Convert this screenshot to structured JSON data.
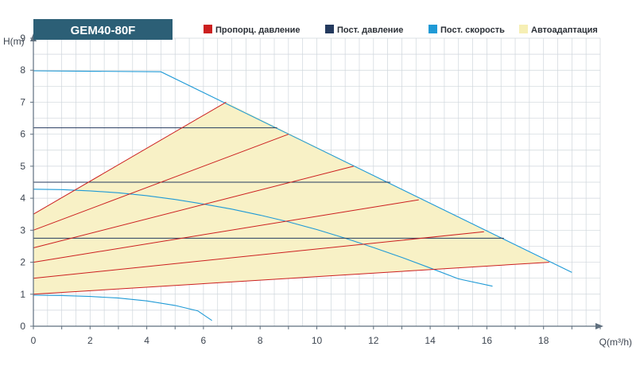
{
  "chart_data": {
    "type": "line",
    "title": "GEM40-80F",
    "xlabel": "Q(m³/h)",
    "ylabel": "H(m)",
    "xlim": [
      0,
      20
    ],
    "ylim": [
      0,
      9
    ],
    "x_ticks": [
      0,
      2,
      4,
      6,
      8,
      10,
      12,
      14,
      16,
      18
    ],
    "y_ticks": [
      0,
      1,
      2,
      3,
      4,
      5,
      6,
      7,
      8,
      9
    ],
    "grid": true,
    "legend_position": "top",
    "legend": [
      {
        "name": "Пропорц. давление",
        "color": "#cc1f1f",
        "marker": "square"
      },
      {
        "name": "Пост. давление",
        "color": "#243a5e",
        "marker": "square"
      },
      {
        "name": "Пост. скорость",
        "color": "#1f9ad6",
        "marker": "square"
      },
      {
        "name": "Автоадаптация",
        "color": "#f6efb4",
        "marker": "square"
      }
    ],
    "colors": {
      "title_bg": "#2c5f76",
      "title_text": "#ffffff",
      "grid": "#cfd6dc",
      "axis": "#5f6f7e",
      "tick_text": "#3d4550",
      "area_fill": "#f8f1c6"
    },
    "autoadaptation_area": [
      [
        0,
        3.5
      ],
      [
        6.8,
        7.0
      ],
      [
        18.2,
        2.0
      ],
      [
        0,
        1.0
      ]
    ],
    "series": [
      {
        "group": "Пост. скорость",
        "points": [
          [
            0,
            7.98
          ],
          [
            4.5,
            7.95
          ],
          [
            19.0,
            1.68
          ]
        ]
      },
      {
        "group": "Пост. скорость",
        "points": [
          [
            0,
            4.28
          ],
          [
            1,
            4.27
          ],
          [
            2,
            4.23
          ],
          [
            3,
            4.17
          ],
          [
            4,
            4.08
          ],
          [
            5,
            3.96
          ],
          [
            6,
            3.82
          ],
          [
            7,
            3.66
          ],
          [
            8,
            3.47
          ],
          [
            9,
            3.26
          ],
          [
            10,
            3.02
          ],
          [
            11,
            2.75
          ],
          [
            12,
            2.46
          ],
          [
            13,
            2.15
          ],
          [
            14,
            1.82
          ],
          [
            15,
            1.48
          ],
          [
            16.2,
            1.25
          ]
        ]
      },
      {
        "group": "Пост. скорость",
        "points": [
          [
            0,
            0.97
          ],
          [
            1,
            0.96
          ],
          [
            2,
            0.93
          ],
          [
            3,
            0.88
          ],
          [
            4,
            0.79
          ],
          [
            5,
            0.65
          ],
          [
            5.8,
            0.48
          ],
          [
            6.3,
            0.18
          ]
        ]
      },
      {
        "group": "Пост. давление",
        "points": [
          [
            0,
            6.2
          ],
          [
            8.6,
            6.2
          ]
        ]
      },
      {
        "group": "Пост. давление",
        "points": [
          [
            0,
            4.5
          ],
          [
            12.6,
            4.5
          ]
        ]
      },
      {
        "group": "Пост. давление",
        "points": [
          [
            0,
            2.75
          ],
          [
            16.6,
            2.75
          ]
        ]
      },
      {
        "group": "Пропорц. давление",
        "points": [
          [
            0,
            3.5
          ],
          [
            6.8,
            7.0
          ]
        ]
      },
      {
        "group": "Пропорц. давление",
        "points": [
          [
            0,
            3.0
          ],
          [
            9.0,
            6.0
          ]
        ]
      },
      {
        "group": "Пропорц. давление",
        "points": [
          [
            0,
            2.45
          ],
          [
            11.3,
            5.0
          ]
        ]
      },
      {
        "group": "Пропорц. давление",
        "points": [
          [
            0,
            2.0
          ],
          [
            13.6,
            3.95
          ]
        ]
      },
      {
        "group": "Пропорц. давление",
        "points": [
          [
            0,
            1.5
          ],
          [
            15.9,
            2.95
          ]
        ]
      },
      {
        "group": "Пропорц. давление",
        "points": [
          [
            0,
            1.0
          ],
          [
            18.2,
            2.0
          ]
        ]
      }
    ]
  }
}
